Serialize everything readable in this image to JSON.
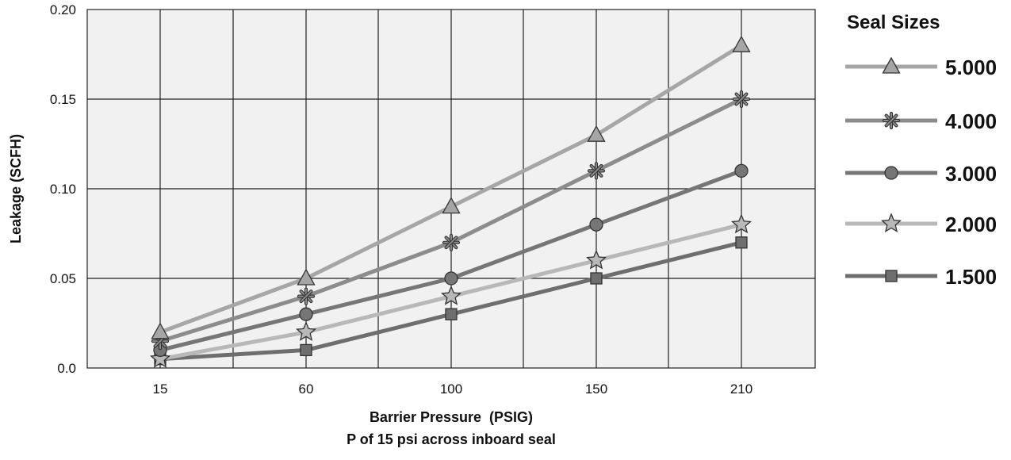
{
  "chart_data": {
    "type": "line",
    "title": "",
    "xlabel": "Barrier Pressure  (PSIG)",
    "xlabel_sub": "P of 15 psi across inboard seal",
    "ylabel": "Leakage (SCFH)",
    "categories": [
      "15",
      "60",
      "100",
      "150",
      "210"
    ],
    "ylim": [
      0,
      0.2
    ],
    "y_ticks": [
      "0.0",
      "0.05",
      "0.10",
      "0.15",
      "0.20"
    ],
    "grid": true,
    "legend_title": "Seal Sizes",
    "legend_position": "right",
    "series": [
      {
        "name": "5.000",
        "marker": "triangle",
        "color": "#a6a6a6",
        "values": [
          0.02,
          0.05,
          0.09,
          0.13,
          0.18
        ]
      },
      {
        "name": "4.000",
        "marker": "asterisk",
        "color": "#8c8c8c",
        "values": [
          0.015,
          0.04,
          0.07,
          0.11,
          0.15
        ]
      },
      {
        "name": "3.000",
        "marker": "circle",
        "color": "#767676",
        "values": [
          0.01,
          0.03,
          0.05,
          0.08,
          0.11
        ]
      },
      {
        "name": "2.000",
        "marker": "star",
        "color": "#b8b8b8",
        "values": [
          0.005,
          0.02,
          0.04,
          0.06,
          0.08
        ]
      },
      {
        "name": "1.500",
        "marker": "square",
        "color": "#6e6e6e",
        "values": [
          0.005,
          0.01,
          0.03,
          0.05,
          0.07
        ]
      }
    ]
  }
}
